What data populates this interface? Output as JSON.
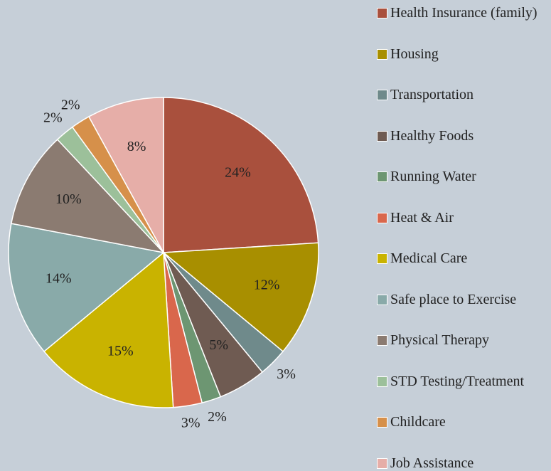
{
  "chart_data": {
    "type": "pie",
    "categories": [
      "Health Insurance (family)",
      "Housing",
      "Transportation",
      "Healthy Foods",
      "Running Water",
      "Heat & Air",
      "Medical Care",
      "Safe place to Exercise",
      "Physical Therapy",
      "STD Testing/Treatment",
      "Childcare",
      "Job Assistance"
    ],
    "values": [
      24,
      12,
      3,
      5,
      2,
      3,
      15,
      14,
      10,
      2,
      2,
      8
    ],
    "value_labels": [
      "24%",
      "12%",
      "3%",
      "5%",
      "2%",
      "3%",
      "15%",
      "14%",
      "10%",
      "2%",
      "2%",
      "8%"
    ],
    "colors": [
      "#a9503d",
      "#a88f00",
      "#6f8a8b",
      "#6f5b52",
      "#6d9672",
      "#d9674c",
      "#c9b300",
      "#89aaa9",
      "#8b7b71",
      "#9cc09a",
      "#d6904a",
      "#e6aea8"
    ],
    "legend": "right"
  }
}
